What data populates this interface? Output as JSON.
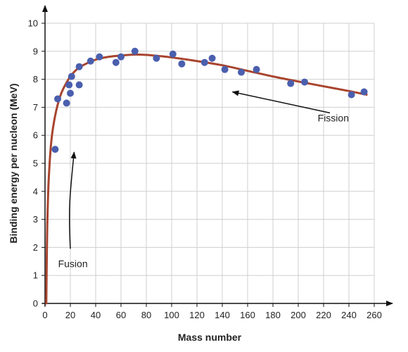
{
  "chart_data": {
    "type": "scatter",
    "title": "",
    "xlabel": "Mass number",
    "ylabel": "Binding energy per nucleon (MeV)",
    "xlim": [
      0,
      260
    ],
    "ylim": [
      0,
      10
    ],
    "x_ticks": [
      0,
      20,
      40,
      60,
      80,
      100,
      120,
      140,
      160,
      180,
      200,
      220,
      240,
      260
    ],
    "y_ticks": [
      0,
      1,
      2,
      3,
      4,
      5,
      6,
      7,
      8,
      9,
      10
    ],
    "grid": true,
    "series": [
      {
        "type": "scatter",
        "color": "#4a5fae",
        "points": [
          {
            "x": 8,
            "y": 5.5
          },
          {
            "x": 10,
            "y": 7.3
          },
          {
            "x": 17,
            "y": 7.15
          },
          {
            "x": 19,
            "y": 7.8
          },
          {
            "x": 20,
            "y": 7.5
          },
          {
            "x": 21,
            "y": 8.1
          },
          {
            "x": 27,
            "y": 7.8
          },
          {
            "x": 27,
            "y": 8.45
          },
          {
            "x": 36,
            "y": 8.65
          },
          {
            "x": 43,
            "y": 8.8
          },
          {
            "x": 56,
            "y": 8.6
          },
          {
            "x": 60,
            "y": 8.8
          },
          {
            "x": 71,
            "y": 9.0
          },
          {
            "x": 88,
            "y": 8.75
          },
          {
            "x": 101,
            "y": 8.9
          },
          {
            "x": 108,
            "y": 8.55
          },
          {
            "x": 126,
            "y": 8.6
          },
          {
            "x": 132,
            "y": 8.75
          },
          {
            "x": 142,
            "y": 8.35
          },
          {
            "x": 155,
            "y": 8.25
          },
          {
            "x": 167,
            "y": 8.35
          },
          {
            "x": 194,
            "y": 7.85
          },
          {
            "x": 205,
            "y": 7.9
          },
          {
            "x": 242,
            "y": 7.45
          },
          {
            "x": 252,
            "y": 7.55
          }
        ]
      },
      {
        "type": "line",
        "color": "#a8442e",
        "points": [
          {
            "x": 1,
            "y": 0
          },
          {
            "x": 1.5,
            "y": 2.0
          },
          {
            "x": 2,
            "y": 3.2
          },
          {
            "x": 3,
            "y": 4.5
          },
          {
            "x": 5,
            "y": 5.8
          },
          {
            "x": 8,
            "y": 6.7
          },
          {
            "x": 12,
            "y": 7.4
          },
          {
            "x": 16,
            "y": 7.8
          },
          {
            "x": 20,
            "y": 8.1
          },
          {
            "x": 25,
            "y": 8.35
          },
          {
            "x": 30,
            "y": 8.5
          },
          {
            "x": 40,
            "y": 8.7
          },
          {
            "x": 50,
            "y": 8.8
          },
          {
            "x": 60,
            "y": 8.85
          },
          {
            "x": 70,
            "y": 8.88
          },
          {
            "x": 80,
            "y": 8.87
          },
          {
            "x": 90,
            "y": 8.83
          },
          {
            "x": 100,
            "y": 8.78
          },
          {
            "x": 120,
            "y": 8.65
          },
          {
            "x": 140,
            "y": 8.5
          },
          {
            "x": 160,
            "y": 8.3
          },
          {
            "x": 180,
            "y": 8.1
          },
          {
            "x": 200,
            "y": 7.92
          },
          {
            "x": 220,
            "y": 7.75
          },
          {
            "x": 240,
            "y": 7.58
          },
          {
            "x": 254,
            "y": 7.45
          }
        ]
      }
    ],
    "annotations": [
      {
        "text": "Fusion",
        "x": 22,
        "y": 1.3,
        "arrow_from": [
          20,
          1.95
        ],
        "arrow_to": [
          23,
          5.4
        ]
      },
      {
        "text": "Fission",
        "x": 240,
        "y": 6.5,
        "arrow_from": [
          225,
          6.8
        ],
        "arrow_to": [
          148,
          7.55
        ]
      }
    ]
  }
}
